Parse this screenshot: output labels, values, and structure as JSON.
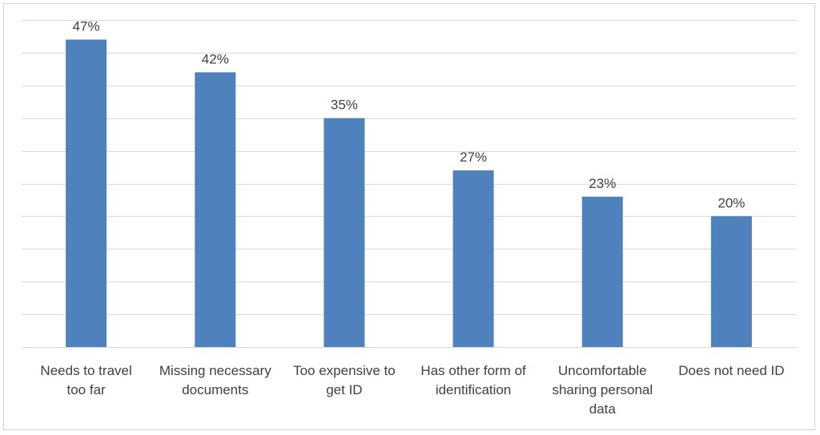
{
  "chart_data": {
    "type": "bar",
    "title": "",
    "xlabel": "",
    "ylabel": "",
    "ylim": [
      0,
      50
    ],
    "grid": true,
    "categories": [
      [
        "Needs to travel",
        "too far"
      ],
      [
        "Missing necessary",
        "documents"
      ],
      [
        "Too expensive to",
        "get ID"
      ],
      [
        "Has other form of",
        "identification"
      ],
      [
        "Uncomfortable",
        "sharing personal",
        "data"
      ],
      [
        "Does not need ID"
      ]
    ],
    "values": [
      47,
      42,
      35,
      27,
      23,
      20
    ],
    "data_labels": [
      "47%",
      "42%",
      "35%",
      "27%",
      "23%",
      "20%"
    ],
    "colors": {
      "bar": "#4f81bd",
      "grid": "#d9d9d9",
      "text": "#404040"
    }
  }
}
